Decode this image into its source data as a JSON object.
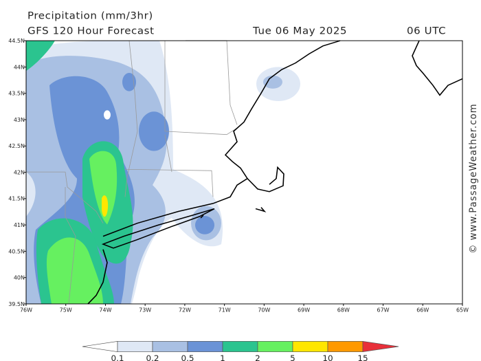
{
  "header": {
    "title": "Precipitation (mm/3hr)",
    "subtitle": "GFS 120 Hour Forecast",
    "date": "Tue 06 May 2025",
    "time": "06 UTC"
  },
  "map": {
    "lat_ticks": [
      "44.5N",
      "44N",
      "43.5N",
      "43N",
      "42.5N",
      "42N",
      "41.5N",
      "41N",
      "40.5N",
      "40N",
      "39.5N"
    ],
    "lon_ticks": [
      "76W",
      "75W",
      "74W",
      "73W",
      "72W",
      "71W",
      "70W",
      "69W",
      "68W",
      "67W",
      "66W",
      "65W"
    ]
  },
  "colorbar": {
    "levels": [
      0.1,
      0.2,
      0.5,
      1,
      2,
      5,
      10,
      15
    ],
    "colors": [
      "#ffffff",
      "#dfe8f5",
      "#a9c0e3",
      "#6b93d6",
      "#2bc48f",
      "#66f060",
      "#ffe600",
      "#ff9900",
      "#e8303a"
    ]
  },
  "watermark": "© www.PassageWeather.com"
}
